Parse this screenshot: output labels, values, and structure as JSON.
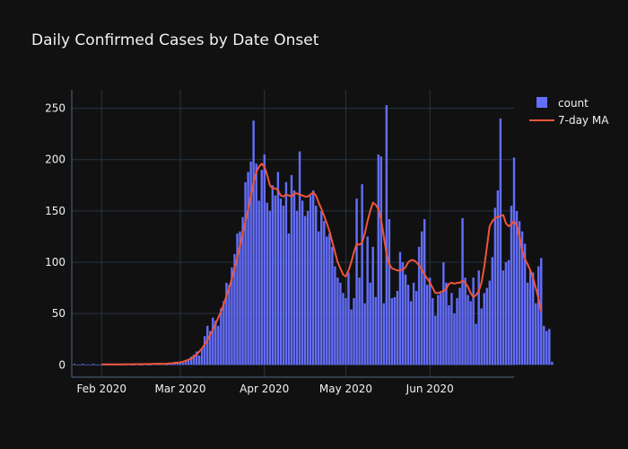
{
  "chart_data": {
    "type": "bar",
    "title": "Daily Confirmed Cases by Date Onset",
    "xlabel": "",
    "ylabel": "",
    "x_start": "2020-01-22",
    "x_range": [
      "2020-01-21",
      "2020-07-02"
    ],
    "ylim": [
      -12,
      268
    ],
    "yticks": [
      0,
      50,
      100,
      150,
      200,
      250
    ],
    "xticks": [
      {
        "date": "2020-02-01",
        "label": "Feb 2020"
      },
      {
        "date": "2020-03-01",
        "label": "Mar 2020"
      },
      {
        "date": "2020-04-01",
        "label": "Apr 2020"
      },
      {
        "date": "2020-05-01",
        "label": "May 2020"
      },
      {
        "date": "2020-06-01",
        "label": "Jun 2020"
      }
    ],
    "grid": true,
    "legend_position": "top-right",
    "colors": {
      "bar": "#636efa",
      "line": "#ef553b",
      "grid": "#283442",
      "background": "#111111"
    },
    "series": [
      {
        "name": "count",
        "type": "bar",
        "values": [
          1,
          0,
          0,
          1,
          0,
          0,
          0,
          1,
          0,
          0,
          0,
          0,
          0,
          0,
          0,
          0,
          0,
          0,
          1,
          0,
          1,
          0,
          0,
          1,
          0,
          0,
          1,
          0,
          0,
          1,
          1,
          2,
          1,
          1,
          0,
          1,
          2,
          3,
          3,
          2,
          2,
          4,
          5,
          8,
          10,
          13,
          9,
          16,
          28,
          38,
          33,
          46,
          43,
          38,
          55,
          62,
          80,
          78,
          95,
          108,
          128,
          130,
          144,
          178,
          188,
          198,
          238,
          196,
          160,
          190,
          205,
          158,
          150,
          175,
          165,
          188,
          162,
          155,
          178,
          128,
          185,
          170,
          150,
          208,
          160,
          145,
          150,
          165,
          170,
          155,
          130,
          150,
          140,
          125,
          128,
          115,
          96,
          85,
          80,
          70,
          65,
          90,
          54,
          65,
          162,
          85,
          176,
          60,
          125,
          80,
          115,
          66,
          205,
          203,
          60,
          253,
          142,
          65,
          66,
          72,
          110,
          100,
          88,
          78,
          62,
          80,
          72,
          115,
          130,
          142,
          78,
          85,
          65,
          48,
          68,
          70,
          100,
          80,
          58,
          70,
          50,
          65,
          75,
          143,
          85,
          68,
          62,
          85,
          40,
          92,
          55,
          70,
          75,
          82,
          105,
          153,
          170,
          240,
          92,
          100,
          102,
          155,
          202,
          150,
          140,
          130,
          118,
          80,
          92,
          90,
          60,
          96,
          104,
          38,
          33,
          35,
          3
        ]
      },
      {
        "name": "7-day MA",
        "type": "line",
        "values": [
          null,
          null,
          null,
          null,
          null,
          null,
          null,
          null,
          null,
          null,
          0.5,
          0.5,
          0.5,
          0.5,
          0.5,
          0.5,
          0.5,
          0.5,
          0.5,
          0.6,
          0.6,
          0.6,
          0.6,
          0.7,
          0.7,
          0.7,
          0.8,
          0.8,
          0.8,
          1,
          1,
          1,
          1,
          1,
          1,
          1.5,
          1.5,
          2,
          2,
          2.5,
          3,
          4,
          5,
          6,
          8,
          10,
          13,
          16,
          20,
          24,
          29,
          34,
          40,
          46,
          52,
          59,
          67,
          75,
          84,
          94,
          105,
          116,
          128,
          140,
          152,
          165,
          178,
          188,
          193,
          196,
          193,
          185,
          175,
          172,
          172,
          170,
          165,
          164,
          166,
          165,
          164,
          167,
          167,
          166,
          165,
          164,
          164,
          166,
          168,
          165,
          158,
          152,
          145,
          138,
          130,
          120,
          110,
          100,
          94,
          88,
          86,
          92,
          100,
          110,
          118,
          117,
          119,
          128,
          140,
          150,
          158,
          156,
          152,
          142,
          125,
          108,
          98,
          94,
          93,
          92,
          92,
          93,
          95,
          100,
          102,
          102,
          100,
          97,
          93,
          88,
          84,
          80,
          75,
          70,
          70,
          71,
          72,
          74,
          79,
          80,
          79,
          80,
          80,
          82,
          80,
          76,
          70,
          66,
          68,
          72,
          80,
          95,
          115,
          135,
          140,
          143,
          144,
          145,
          146,
          138,
          135,
          137,
          140,
          136,
          125,
          112,
          103,
          98,
          92,
          85,
          75,
          65,
          52
        ]
      }
    ]
  },
  "legend": {
    "items": [
      {
        "label": "count"
      },
      {
        "label": "7-day MA"
      }
    ]
  }
}
